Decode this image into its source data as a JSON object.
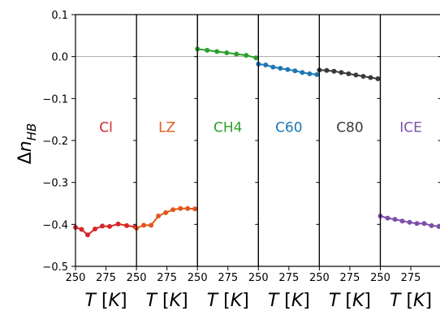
{
  "chart_data": {
    "type": "line",
    "ylabel": "Δn_HB",
    "ylim": [
      -0.5,
      0.1
    ],
    "yticks": [
      0.1,
      0.0,
      -0.1,
      -0.2,
      -0.3,
      -0.4,
      -0.5
    ],
    "ytick_labels": [
      "0.1",
      "0.0",
      "−0.1",
      "−0.2",
      "−0.3",
      "−0.4",
      "−0.5"
    ],
    "xlim": [
      250,
      300
    ],
    "xticks": [
      250,
      275
    ],
    "xtick_labels": [
      "250",
      "275"
    ],
    "last_panel_xticks": [
      250,
      275
    ],
    "xlabel": "T [K]",
    "zero_line": true,
    "panels": [
      {
        "name": "Cl",
        "color": "#d62728",
        "x": [
          250,
          255,
          260,
          266,
          272,
          278,
          285,
          292,
          299
        ],
        "y": [
          -0.407,
          -0.412,
          -0.425,
          -0.411,
          -0.404,
          -0.405,
          -0.399,
          -0.403,
          -0.406
        ]
      },
      {
        "name": "LZ",
        "color": "#e0581a",
        "x": [
          250,
          256,
          262,
          268,
          274,
          280,
          286,
          292,
          298
        ],
        "y": [
          -0.409,
          -0.402,
          -0.402,
          -0.38,
          -0.372,
          -0.365,
          -0.362,
          -0.362,
          -0.363
        ]
      },
      {
        "name": "CH4",
        "color": "#2ca02c",
        "x": [
          250,
          258,
          266,
          274,
          282,
          290,
          298
        ],
        "y": [
          0.018,
          0.015,
          0.012,
          0.009,
          0.006,
          0.003,
          -0.003
        ]
      },
      {
        "name": "C60",
        "color": "#1f77b4",
        "x": [
          250,
          256,
          262,
          268,
          274,
          280,
          286,
          292,
          298
        ],
        "y": [
          -0.018,
          -0.02,
          -0.025,
          -0.028,
          -0.031,
          -0.034,
          -0.038,
          -0.041,
          -0.043
        ]
      },
      {
        "name": "C80",
        "color": "#3a3a3a",
        "x": [
          250,
          256,
          262,
          268,
          274,
          280,
          286,
          292,
          298
        ],
        "y": [
          -0.032,
          -0.033,
          -0.035,
          -0.038,
          -0.041,
          -0.044,
          -0.047,
          -0.05,
          -0.053
        ]
      },
      {
        "name": "ICE",
        "color": "#7e4fa8",
        "x": [
          250,
          256,
          262,
          268,
          274,
          280,
          286,
          292,
          298
        ],
        "y": [
          -0.38,
          -0.385,
          -0.388,
          -0.392,
          -0.395,
          -0.398,
          -0.398,
          -0.403,
          -0.405
        ]
      }
    ]
  }
}
